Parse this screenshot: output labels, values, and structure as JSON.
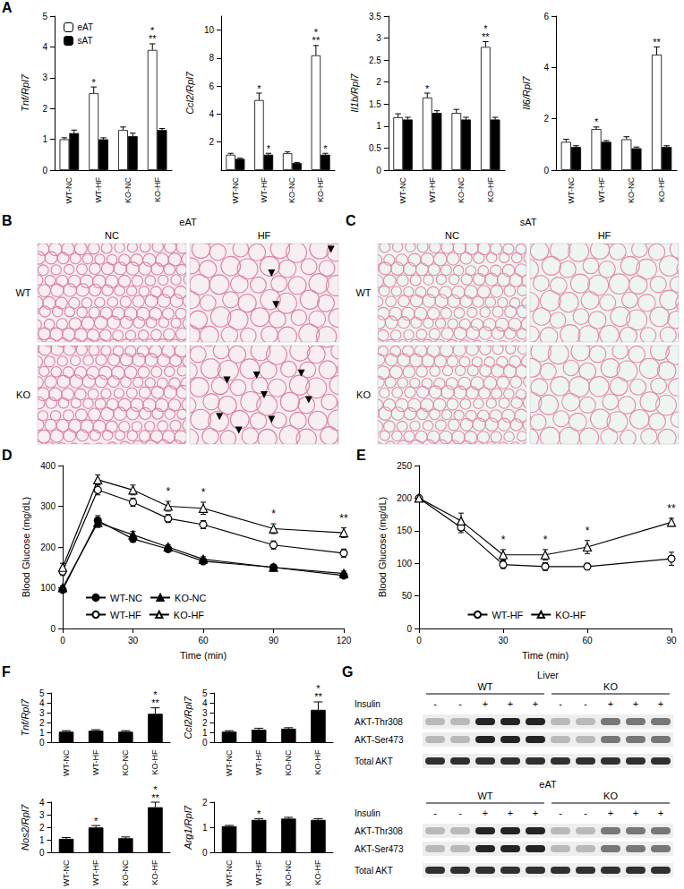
{
  "panel_labels": [
    "A",
    "B",
    "C",
    "D",
    "E",
    "F",
    "G"
  ],
  "chart_data": [
    {
      "type": "bar",
      "y_label": "Tnf/Rpl7",
      "categories": [
        "WT-NC",
        "WT-HF",
        "KO-NC",
        "KO-HF"
      ],
      "series": [
        {
          "name": "eAT",
          "color": "#ffffff",
          "values": [
            1.0,
            2.5,
            1.3,
            3.9
          ],
          "errors": [
            0.05,
            0.2,
            0.1,
            0.2
          ]
        },
        {
          "name": "sAT",
          "color": "#000000",
          "values": [
            1.2,
            1.0,
            1.1,
            1.3
          ],
          "errors": [
            0.1,
            0.05,
            0.1,
            0.05
          ]
        }
      ],
      "ylim": [
        0,
        5
      ],
      "yticks": [
        0,
        1,
        2,
        3,
        4,
        5
      ],
      "legend": "top-left",
      "annotations": [
        {
          "category": "WT-HF",
          "series": "eAT",
          "text": "*"
        },
        {
          "category": "KO-HF",
          "series": "eAT",
          "text": "*\n**"
        }
      ]
    },
    {
      "type": "bar",
      "y_label": "Ccl2/Rpl7",
      "categories": [
        "WT-NC",
        "WT-HF",
        "KO-NC",
        "KO-HF"
      ],
      "series": [
        {
          "name": "eAT",
          "color": "#ffffff",
          "values": [
            1.1,
            5.0,
            1.2,
            8.2
          ],
          "errors": [
            0.1,
            0.5,
            0.1,
            0.7
          ]
        },
        {
          "name": "sAT",
          "color": "#000000",
          "values": [
            0.8,
            1.1,
            0.5,
            1.1
          ],
          "errors": [
            0.05,
            0.1,
            0.05,
            0.1
          ]
        }
      ],
      "ylim": [
        0,
        11
      ],
      "yticks": [
        2,
        4,
        6,
        8,
        10
      ],
      "annotations": [
        {
          "category": "WT-HF",
          "series": "eAT",
          "text": "*"
        },
        {
          "category": "WT-HF",
          "series": "sAT",
          "text": "*"
        },
        {
          "category": "KO-HF",
          "series": "eAT",
          "text": "*\n**"
        },
        {
          "category": "KO-HF",
          "series": "sAT",
          "text": "*"
        }
      ]
    },
    {
      "type": "bar",
      "y_label": "Il1b/Rpl7",
      "categories": [
        "WT-NC",
        "WT-HF",
        "KO-NC",
        "KO-HF"
      ],
      "series": [
        {
          "name": "eAT",
          "color": "#ffffff",
          "values": [
            1.2,
            1.65,
            1.3,
            2.8
          ],
          "errors": [
            0.08,
            0.1,
            0.08,
            0.12
          ]
        },
        {
          "name": "sAT",
          "color": "#000000",
          "values": [
            1.15,
            1.3,
            1.15,
            1.15
          ],
          "errors": [
            0.05,
            0.05,
            0.05,
            0.05
          ]
        }
      ],
      "ylim": [
        0,
        3.5
      ],
      "yticks": [
        0,
        0.5,
        1,
        1.5,
        2,
        2.5,
        3,
        3.5
      ],
      "annotations": [
        {
          "category": "WT-HF",
          "series": "eAT",
          "text": "*"
        },
        {
          "category": "KO-HF",
          "series": "eAT",
          "text": "*\n**"
        }
      ]
    },
    {
      "type": "bar",
      "y_label": "Il6/Rpl7",
      "categories": [
        "WT-NC",
        "WT-HF",
        "KO-NC",
        "KO-HF"
      ],
      "series": [
        {
          "name": "eAT",
          "color": "#ffffff",
          "values": [
            1.1,
            1.6,
            1.2,
            4.5
          ],
          "errors": [
            0.1,
            0.08,
            0.1,
            0.3
          ]
        },
        {
          "name": "sAT",
          "color": "#000000",
          "values": [
            0.9,
            1.1,
            0.85,
            0.9
          ],
          "errors": [
            0.05,
            0.05,
            0.05,
            0.05
          ]
        }
      ],
      "ylim": [
        0,
        6
      ],
      "yticks": [
        0,
        2,
        4,
        6
      ],
      "annotations": [
        {
          "category": "WT-HF",
          "series": "eAT",
          "text": "*"
        },
        {
          "category": "KO-HF",
          "series": "eAT",
          "text": "**"
        }
      ]
    },
    {
      "type": "line",
      "x_label": "Time (min)",
      "y_label": "Blood Glucose (mg/dL)",
      "x": [
        0,
        15,
        30,
        45,
        60,
        90,
        120
      ],
      "series": [
        {
          "name": "WT-NC",
          "color": "#000000",
          "marker": "circle",
          "values": [
            95,
            265,
            220,
            195,
            165,
            150,
            130
          ],
          "errors": [
            5,
            12,
            8,
            6,
            6,
            6,
            6
          ]
        },
        {
          "name": "KO-NC",
          "color": "#000000",
          "marker": "triangle",
          "values": [
            100,
            260,
            230,
            200,
            170,
            150,
            135
          ],
          "errors": [
            5,
            12,
            8,
            6,
            6,
            6,
            6
          ]
        },
        {
          "name": "WT-HF",
          "color": "#000000",
          "marker": "open-circle",
          "values": [
            140,
            340,
            310,
            270,
            255,
            205,
            185
          ],
          "errors": [
            10,
            12,
            10,
            10,
            10,
            10,
            10
          ]
        },
        {
          "name": "KO-HF",
          "color": "#000000",
          "marker": "open-triangle",
          "values": [
            150,
            365,
            340,
            300,
            295,
            245,
            235
          ],
          "errors": [
            10,
            12,
            12,
            12,
            15,
            12,
            12
          ]
        }
      ],
      "xlim": [
        0,
        120
      ],
      "xticks": [
        0,
        30,
        60,
        90,
        120
      ],
      "ylim": [
        0,
        400
      ],
      "yticks": [
        0,
        100,
        200,
        300,
        400
      ],
      "legend": "bottom-left",
      "annotations": [
        {
          "x": 45,
          "text": "*"
        },
        {
          "x": 60,
          "text": "*"
        },
        {
          "x": 90,
          "text": "*"
        },
        {
          "x": 120,
          "text": "**"
        }
      ]
    },
    {
      "type": "line",
      "x_label": "Time (min)",
      "y_label": "Blood Glucose (mg/dL)",
      "x": [
        0,
        15,
        30,
        45,
        60,
        90
      ],
      "series": [
        {
          "name": "WT-HF",
          "color": "#000000",
          "marker": "open-circle",
          "values": [
            200,
            155,
            98,
            95,
            95,
            107
          ],
          "errors": [
            0,
            8,
            6,
            6,
            5,
            10
          ]
        },
        {
          "name": "KO-HF",
          "color": "#000000",
          "marker": "open-triangle",
          "values": [
            200,
            165,
            113,
            113,
            125,
            163
          ],
          "errors": [
            0,
            12,
            8,
            8,
            10,
            6
          ]
        }
      ],
      "xlim": [
        0,
        90
      ],
      "xticks": [
        0,
        30,
        60,
        90
      ],
      "ylim": [
        0,
        250
      ],
      "yticks": [
        0,
        50,
        100,
        150,
        200,
        250
      ],
      "legend": "bottom",
      "annotations": [
        {
          "x": 30,
          "text": "*"
        },
        {
          "x": 45,
          "text": "*"
        },
        {
          "x": 60,
          "text": "*"
        },
        {
          "x": 90,
          "text": "**"
        }
      ]
    },
    {
      "type": "bar",
      "y_label": "Tnf/Rpl7",
      "categories": [
        "WT-NC",
        "WT-HF",
        "KO-NC",
        "KO-HF"
      ],
      "color": "#000000",
      "values": [
        1.1,
        1.2,
        1.1,
        2.9
      ],
      "errors": [
        0.1,
        0.1,
        0.1,
        0.6
      ],
      "ylim": [
        0,
        5
      ],
      "yticks": [
        0,
        1,
        2,
        3,
        4,
        5
      ],
      "annotations": [
        {
          "category": "KO-HF",
          "text": "*\n**"
        }
      ]
    },
    {
      "type": "bar",
      "y_label": "Ccl2/Rpl7",
      "categories": [
        "WT-NC",
        "WT-HF",
        "KO-NC",
        "KO-HF"
      ],
      "color": "#000000",
      "values": [
        1.1,
        1.3,
        1.4,
        3.3
      ],
      "errors": [
        0.1,
        0.15,
        0.1,
        0.8
      ],
      "ylim": [
        0,
        5
      ],
      "yticks": [
        0,
        1,
        2,
        3,
        4,
        5
      ],
      "annotations": [
        {
          "category": "KO-HF",
          "text": "*\n**"
        }
      ]
    },
    {
      "type": "bar",
      "y_label": "Nos2/Rpl7",
      "categories": [
        "WT-NC",
        "WT-HF",
        "KO-NC",
        "KO-HF"
      ],
      "color": "#000000",
      "values": [
        1.1,
        2.0,
        1.15,
        3.6
      ],
      "errors": [
        0.1,
        0.15,
        0.1,
        0.4
      ],
      "ylim": [
        0,
        4
      ],
      "yticks": [
        0,
        1,
        2,
        3,
        4
      ],
      "annotations": [
        {
          "category": "WT-HF",
          "text": "*"
        },
        {
          "category": "KO-HF",
          "text": "*\n**"
        }
      ]
    },
    {
      "type": "bar",
      "y_label": "Arg1/Rpl7",
      "categories": [
        "WT-NC",
        "WT-HF",
        "KO-NC",
        "KO-HF"
      ],
      "color": "#000000",
      "values": [
        1.05,
        1.3,
        1.35,
        1.3
      ],
      "errors": [
        0.03,
        0.05,
        0.05,
        0.05
      ],
      "ylim": [
        0,
        2
      ],
      "yticks": [
        0,
        1,
        2
      ],
      "annotations": [
        {
          "category": "WT-HF",
          "text": "*"
        }
      ]
    }
  ],
  "histology": [
    {
      "title": "eAT",
      "columns": [
        "NC",
        "HF"
      ],
      "rows": [
        "WT",
        "KO"
      ]
    },
    {
      "title": "sAT",
      "columns": [
        "NC",
        "HF"
      ],
      "rows": [
        "WT",
        "KO"
      ]
    }
  ],
  "blots": [
    {
      "tissue": "Liver",
      "groups": [
        "WT",
        "KO"
      ],
      "treatment": "Insulin",
      "lanes": [
        "-",
        "-",
        "+",
        "+",
        "+",
        "-",
        "-",
        "+",
        "+",
        "+"
      ],
      "bands": [
        "AKT-Thr308",
        "AKT-Ser473",
        "Total AKT"
      ]
    },
    {
      "tissue": "eAT",
      "groups": [
        "WT",
        "KO"
      ],
      "treatment": "Insulin",
      "lanes": [
        "-",
        "-",
        "+",
        "+",
        "+",
        "-",
        "-",
        "+",
        "+",
        "+"
      ],
      "bands": [
        "AKT-Thr308",
        "AKT-Ser473",
        "Total AKT"
      ]
    }
  ]
}
